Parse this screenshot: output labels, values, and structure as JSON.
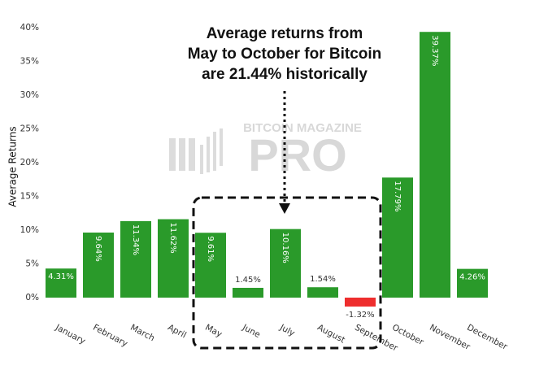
{
  "chart_data": {
    "type": "bar",
    "y_label": "Average Returns",
    "annotation": [
      "Average returns from",
      "May to October for Bitcoin",
      "are 21.44% historically"
    ],
    "watermark": [
      "BITCOIN MAGAZINE",
      "PRO"
    ],
    "categories": [
      "January",
      "February",
      "March",
      "April",
      "May",
      "June",
      "July",
      "August",
      "September",
      "October",
      "November",
      "December"
    ],
    "values": [
      4.31,
      9.64,
      11.34,
      11.62,
      9.61,
      1.45,
      10.16,
      1.54,
      -1.32,
      17.79,
      39.37,
      4.26
    ],
    "value_labels": [
      "4.31%",
      "9.64%",
      "11.34%",
      "11.62%",
      "9.61%",
      "1.45%",
      "10.16%",
      "1.54%",
      "-1.32%",
      "17.79%",
      "39.37%",
      "4.26%"
    ],
    "colors": [
      "#2a9a2a",
      "#2a9a2a",
      "#2a9a2a",
      "#2a9a2a",
      "#2a9a2a",
      "#2a9a2a",
      "#2a9a2a",
      "#2a9a2a",
      "#ee2e2e",
      "#2a9a2a",
      "#2a9a2a",
      "#2a9a2a"
    ],
    "ylim": [
      -3.5,
      40.5
    ],
    "yticks": [
      {
        "value": 0,
        "label": "0%"
      },
      {
        "value": 5,
        "label": "5%"
      },
      {
        "value": 10,
        "label": "10%"
      },
      {
        "value": 15,
        "label": "15%"
      },
      {
        "value": 20,
        "label": "20%"
      },
      {
        "value": 25,
        "label": "25%"
      },
      {
        "value": 30,
        "label": "30%"
      },
      {
        "value": 35,
        "label": "35%"
      },
      {
        "value": 40,
        "label": "40%"
      }
    ],
    "grid": false
  }
}
